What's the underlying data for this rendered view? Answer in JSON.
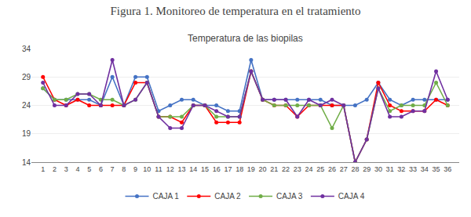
{
  "chart_data": {
    "type": "line",
    "title": "Figura 1. Monitoreo de temperatura en el tratamiento",
    "subtitle": "Temperatura de las biopilas",
    "x": [
      1,
      2,
      3,
      4,
      5,
      6,
      7,
      8,
      9,
      10,
      11,
      12,
      13,
      14,
      15,
      16,
      17,
      18,
      19,
      20,
      21,
      22,
      23,
      24,
      25,
      26,
      27,
      28,
      29,
      30,
      31,
      32,
      33,
      34,
      35,
      36
    ],
    "series": [
      {
        "name": "CAJA 1",
        "color": "#4472C4",
        "values": [
          27,
          25,
          25,
          25,
          25,
          24,
          29,
          24,
          29,
          29,
          23,
          24,
          25,
          25,
          24,
          24,
          23,
          23,
          32,
          25,
          25,
          25,
          25,
          25,
          25,
          24,
          24,
          24,
          25,
          28,
          25,
          24,
          25,
          25,
          25,
          25
        ]
      },
      {
        "name": "CAJA 2",
        "color": "#FF0000",
        "values": [
          29,
          25,
          24,
          25,
          24,
          24,
          24,
          24,
          28,
          28,
          22,
          22,
          21,
          24,
          24,
          21,
          21,
          21,
          30,
          25,
          24,
          24,
          22,
          24,
          24,
          24,
          24,
          14,
          18,
          28,
          24,
          23,
          23,
          23,
          25,
          24
        ]
      },
      {
        "name": "CAJA 3",
        "color": "#70AD47",
        "values": [
          27,
          25,
          25,
          26,
          26,
          25,
          25,
          24,
          25,
          28,
          22,
          22,
          22,
          24,
          24,
          22,
          22,
          22,
          30,
          25,
          24,
          24,
          24,
          24,
          24,
          20,
          24,
          14,
          18,
          27,
          23,
          24,
          24,
          24,
          28,
          24
        ]
      },
      {
        "name": "CAJA 4",
        "color": "#7030A0",
        "values": [
          28,
          24,
          24,
          26,
          26,
          24,
          32,
          24,
          25,
          28,
          22,
          20,
          20,
          24,
          24,
          23,
          22,
          22,
          30,
          25,
          25,
          25,
          22,
          25,
          24,
          25,
          24,
          14,
          18,
          27,
          22,
          22,
          23,
          23,
          30,
          25
        ]
      }
    ],
    "xlim": [
      0,
      37
    ],
    "xticks": [
      1,
      2,
      3,
      4,
      5,
      6,
      7,
      8,
      9,
      10,
      11,
      12,
      13,
      14,
      15,
      16,
      17,
      18,
      19,
      20,
      21,
      22,
      23,
      24,
      25,
      26,
      27,
      28,
      29,
      30,
      31,
      32,
      33,
      34,
      35,
      36
    ],
    "ylim": [
      14,
      34
    ],
    "yticks": [
      14,
      19,
      24,
      29,
      34
    ],
    "grid": true,
    "legend": "bottom",
    "marker": "circle",
    "line_style": "solid"
  }
}
